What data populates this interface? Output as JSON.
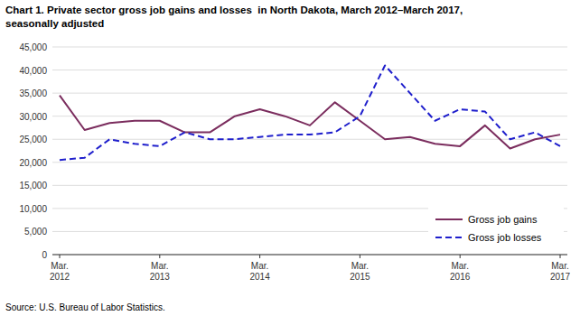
{
  "chart_data": {
    "type": "line",
    "title": "Chart 1. Private sector gross job gains and losses  in North Dakota, March 2012–March 2017,",
    "subtitle": "seasonally adjusted",
    "source": "Source: U.S. Bureau of Labor Statistics.",
    "categories": [
      "Mar.\n2012",
      null,
      null,
      null,
      "Mar.\n2013",
      null,
      null,
      null,
      "Mar.\n2014",
      null,
      null,
      null,
      "Mar.\n2015",
      null,
      null,
      null,
      "Mar.\n2016",
      null,
      null,
      null,
      "Mar.\n2017"
    ],
    "series": [
      {
        "name": "Gross job gains",
        "color": "#7B2D5E",
        "line_style": "solid",
        "values": [
          34500,
          27000,
          28500,
          29000,
          29000,
          26500,
          26500,
          30000,
          31500,
          30000,
          28000,
          33000,
          29000,
          25000,
          25500,
          24000,
          23500,
          28000,
          23000,
          25000,
          26000
        ]
      },
      {
        "name": "Gross job losses",
        "color": "#1F1FCC",
        "line_style": "dashed",
        "values": [
          20500,
          21000,
          25000,
          24000,
          23500,
          26500,
          25000,
          25000,
          25500,
          26000,
          26000,
          26500,
          30000,
          41000,
          35000,
          29000,
          31500,
          31000,
          25000,
          26500,
          23500
        ]
      }
    ],
    "ylim": [
      0,
      45000
    ],
    "yticks": [
      0,
      {
        "value": 5000,
        "label": "5,000"
      },
      {
        "value": 10000,
        "label": "10,000"
      },
      {
        "value": 15000,
        "label": "15,000"
      },
      {
        "value": 20000,
        "label": "20,000"
      },
      {
        "value": 25000,
        "label": "25,000"
      },
      {
        "value": 30000,
        "label": "30,000"
      },
      {
        "value": 35000,
        "label": "35,000"
      },
      {
        "value": 40000,
        "label": "40,000"
      },
      {
        "value": 45000,
        "label": "45,000"
      }
    ],
    "grid": true,
    "legend": "lower right"
  }
}
